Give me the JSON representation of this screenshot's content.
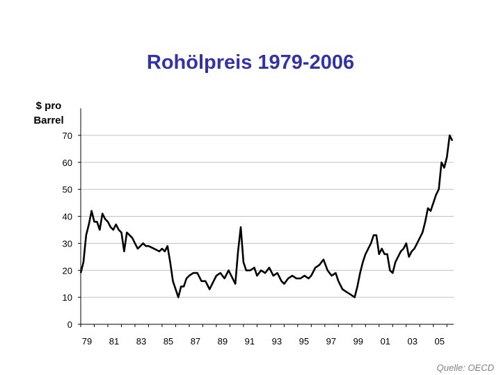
{
  "title": "Rohölpreis 1979-2006",
  "unit_label_line1": "$ pro",
  "unit_label_line2": "Barrel",
  "source": "Quelle: OECD",
  "colors": {
    "title": "#3333a8",
    "line": "#000000",
    "grid": "#c0c0c0",
    "source": "#808080"
  },
  "chart_data": {
    "type": "line",
    "title": "Rohölpreis 1979-2006",
    "ylabel": "$ pro Barrel",
    "xlabel": "",
    "xlim": [
      1979.0,
      2006.5
    ],
    "ylim": [
      0,
      80
    ],
    "yticks": [
      0,
      10,
      20,
      30,
      40,
      50,
      60,
      70
    ],
    "xticks": [
      1979,
      1981,
      1983,
      1985,
      1987,
      1989,
      1991,
      1993,
      1995,
      1997,
      1999,
      2001,
      2003,
      2005
    ],
    "xtick_labels": [
      "79",
      "81",
      "83",
      "85",
      "87",
      "89",
      "91",
      "93",
      "95",
      "97",
      "99",
      "01",
      "03",
      "05"
    ],
    "grid": "horizontal",
    "series": [
      {
        "x": [
          1979.0,
          1979.2,
          1979.4,
          1979.6,
          1979.8,
          1980.0,
          1980.2,
          1980.4,
          1980.6,
          1980.8,
          1981.0,
          1981.2,
          1981.4,
          1981.6,
          1981.8,
          1982.0,
          1982.2,
          1982.4,
          1982.6,
          1982.8,
          1983.0,
          1983.2,
          1983.4,
          1983.6,
          1983.8,
          1984.0,
          1984.4,
          1984.8,
          1985.0,
          1985.2,
          1985.4,
          1985.6,
          1985.8,
          1986.0,
          1986.2,
          1986.4,
          1986.6,
          1986.8,
          1987.0,
          1987.3,
          1987.6,
          1987.9,
          1988.2,
          1988.5,
          1988.8,
          1989.0,
          1989.3,
          1989.6,
          1989.9,
          1990.2,
          1990.4,
          1990.6,
          1990.8,
          1991.0,
          1991.2,
          1991.5,
          1991.8,
          1992.0,
          1992.3,
          1992.6,
          1992.9,
          1993.2,
          1993.5,
          1993.8,
          1994.0,
          1994.3,
          1994.6,
          1994.9,
          1995.2,
          1995.5,
          1995.8,
          1996.0,
          1996.3,
          1996.6,
          1996.9,
          1997.2,
          1997.5,
          1997.8,
          1998.0,
          1998.3,
          1998.6,
          1998.9,
          1999.2,
          1999.4,
          1999.6,
          1999.8,
          2000.0,
          2000.2,
          2000.4,
          2000.6,
          2000.8,
          2001.0,
          2001.2,
          2001.4,
          2001.6,
          2001.8,
          2002.0,
          2002.2,
          2002.4,
          2002.6,
          2002.8,
          2003.0,
          2003.2,
          2003.4,
          2003.6,
          2003.8,
          2004.0,
          2004.2,
          2004.4,
          2004.6,
          2004.8,
          2005.0,
          2005.2,
          2005.4,
          2005.6,
          2005.8,
          2006.0,
          2006.2,
          2006.4
        ],
        "values": [
          19,
          23,
          33,
          37,
          42,
          38,
          38,
          35,
          41,
          39,
          38,
          36,
          35,
          37,
          35,
          34,
          27,
          34,
          33,
          32,
          30,
          28,
          29,
          30,
          29,
          29,
          28,
          27,
          28,
          27,
          29,
          23,
          16,
          13,
          10,
          14,
          14,
          17,
          18,
          19,
          19,
          16,
          16,
          13,
          16,
          18,
          19,
          17,
          20,
          17,
          15,
          27,
          36,
          23,
          20,
          20,
          21,
          18,
          20,
          19,
          21,
          18,
          19,
          16,
          15,
          17,
          18,
          17,
          17,
          18,
          17,
          18,
          21,
          22,
          24,
          20,
          18,
          19,
          16,
          13,
          12,
          11,
          10,
          14,
          19,
          23,
          26,
          28,
          30,
          33,
          33,
          26,
          28,
          26,
          26,
          20,
          19,
          23,
          25,
          27,
          28,
          30,
          25,
          27,
          28,
          30,
          32,
          34,
          38,
          43,
          42,
          45,
          48,
          50,
          60,
          58,
          62,
          70,
          68
        ]
      }
    ]
  }
}
